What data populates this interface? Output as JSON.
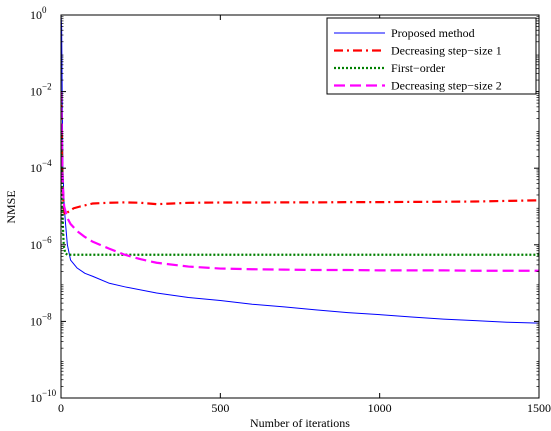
{
  "chart_data": {
    "type": "line",
    "xlabel": "Number of iterations",
    "ylabel": "NMSE",
    "xlim": [
      0,
      1500
    ],
    "ylim": [
      1e-10,
      1
    ],
    "yscale": "log",
    "grid": false,
    "legend_position": "top-right",
    "x_ticks": [
      {
        "value": 0,
        "label": "0"
      },
      {
        "value": 500,
        "label": "500"
      },
      {
        "value": 1000,
        "label": "1000"
      },
      {
        "value": 1500,
        "label": "1500"
      }
    ],
    "y_ticks": [
      {
        "value": 1e-10,
        "base": "10",
        "exp": "−10"
      },
      {
        "value": 1e-08,
        "base": "10",
        "exp": "−8"
      },
      {
        "value": 1e-06,
        "base": "10",
        "exp": "−6"
      },
      {
        "value": 0.0001,
        "base": "10",
        "exp": "−4"
      },
      {
        "value": 0.01,
        "base": "10",
        "exp": "−2"
      },
      {
        "value": 1,
        "base": "10",
        "exp": "0"
      }
    ],
    "series": [
      {
        "name": "Proposed method",
        "color": "#0000ff",
        "style": "solid",
        "x": [
          0,
          2,
          4,
          6,
          10,
          15,
          20,
          30,
          50,
          75,
          100,
          150,
          200,
          300,
          400,
          500,
          600,
          700,
          800,
          900,
          1000,
          1100,
          1200,
          1300,
          1400,
          1500
        ],
        "y": [
          1,
          0.5,
          0.005,
          0.0001,
          1e-05,
          3e-06,
          1e-06,
          4e-07,
          2.5e-07,
          1.8e-07,
          1.5e-07,
          1e-07,
          8e-08,
          5.5e-08,
          4.2e-08,
          3.5e-08,
          2.8e-08,
          2.4e-08,
          2e-08,
          1.7e-08,
          1.5e-08,
          1.3e-08,
          1.15e-08,
          1.05e-08,
          9.5e-09,
          9e-09
        ]
      },
      {
        "name": "Decreasing step−size 1",
        "color": "#ff0000",
        "style": "dashdot",
        "x": [
          0,
          1,
          3,
          5,
          8,
          12,
          20,
          40,
          60,
          100,
          150,
          200,
          250,
          300,
          350,
          400,
          500,
          600,
          700,
          800,
          900,
          1000,
          1100,
          1200,
          1300,
          1400,
          1500
        ],
        "y": [
          0.01,
          0.005,
          0.0003,
          4e-05,
          1e-05,
          6e-06,
          7e-06,
          9e-06,
          1e-05,
          1.2e-05,
          1.25e-05,
          1.28e-05,
          1.25e-05,
          1.15e-05,
          1.2e-05,
          1.25e-05,
          1.27e-05,
          1.27e-05,
          1.28e-05,
          1.28e-05,
          1.3e-05,
          1.3e-05,
          1.32e-05,
          1.33e-05,
          1.35e-05,
          1.4e-05,
          1.45e-05
        ]
      },
      {
        "name": "First−order",
        "color": "#008000",
        "style": "dotted",
        "x": [
          0,
          2,
          4,
          6,
          8,
          10,
          14,
          20,
          40,
          100,
          200,
          300,
          400,
          500,
          600,
          700,
          800,
          900,
          1000,
          1100,
          1200,
          1300,
          1400,
          1500
        ],
        "y": [
          0.001,
          0.0001,
          1.5e-05,
          3e-06,
          1.2e-06,
          8e-07,
          6e-07,
          5.5e-07,
          5.5e-07,
          5.5e-07,
          5.5e-07,
          5.5e-07,
          5.5e-07,
          5.5e-07,
          5.5e-07,
          5.5e-07,
          5.5e-07,
          5.5e-07,
          5.5e-07,
          5.5e-07,
          5.5e-07,
          5.5e-07,
          5.5e-07,
          5.5e-07
        ]
      },
      {
        "name": "Decreasing step−size 2",
        "color": "#ff00ff",
        "style": "dashed",
        "x": [
          0,
          2,
          4,
          6,
          8,
          10,
          15,
          20,
          30,
          50,
          75,
          100,
          150,
          200,
          250,
          300,
          400,
          500,
          600,
          700,
          800,
          900,
          1000,
          1100,
          1200,
          1300,
          1400,
          1500
        ],
        "y": [
          0.01,
          0.001,
          0.0001,
          3e-05,
          1.5e-05,
          1e-05,
          7e-06,
          5e-06,
          3.5e-06,
          2.3e-06,
          1.6e-06,
          1.2e-06,
          8e-07,
          5.5e-07,
          4.2e-07,
          3.4e-07,
          2.7e-07,
          2.4e-07,
          2.3e-07,
          2.25e-07,
          2.2e-07,
          2.2e-07,
          2.15e-07,
          2.15e-07,
          2.15e-07,
          2.1e-07,
          2.1e-07,
          2.1e-07
        ]
      }
    ]
  }
}
